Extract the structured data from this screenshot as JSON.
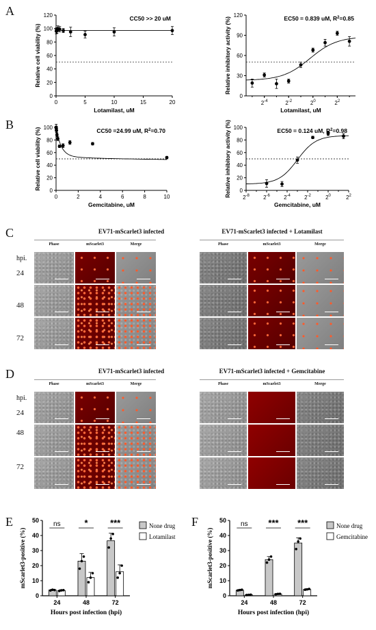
{
  "panels": {
    "A": "A",
    "B": "B",
    "C": "C",
    "D": "D",
    "E": "E",
    "F": "F"
  },
  "chart_data": [
    {
      "id": "A-left",
      "type": "scatter",
      "annotation": "CC50 >> 20 uM",
      "xlabel": "Lotamilast, uM",
      "ylabel": "Relative cell viability (%)",
      "xlim": [
        0,
        20
      ],
      "ylim": [
        0,
        120
      ],
      "xticks": [
        "0",
        "5",
        "10",
        "15",
        "20"
      ],
      "yticks": [
        "0",
        "20",
        "40",
        "60",
        "80",
        "100",
        "120"
      ],
      "reference_line": 50,
      "x": [
        0.04,
        0.08,
        0.16,
        0.31,
        0.63,
        1.25,
        2.5,
        5,
        10,
        20
      ],
      "y": [
        96,
        98,
        97,
        100,
        99,
        97,
        95,
        91,
        95,
        97
      ],
      "err": [
        4,
        3,
        4,
        4,
        4,
        3,
        7,
        5,
        6,
        6
      ]
    },
    {
      "id": "A-right",
      "type": "scatter",
      "annotation": "EC50 = 0.839 uM, R",
      "annotation_sup": "2",
      "annotation_tail": "=0.85",
      "xlabel": "Lotamilast, uM",
      "ylabel": "Relative inhibitory activity (%)",
      "xscale": "log2",
      "xlim_log2": [
        -5.5,
        3.5
      ],
      "ylim": [
        0,
        120
      ],
      "xticks": [
        {
          "base": "2",
          "exp": "-4"
        },
        {
          "base": "2",
          "exp": "-2"
        },
        {
          "base": "2",
          "exp": "0"
        },
        {
          "base": "2",
          "exp": "2"
        }
      ],
      "xtick_exps": [
        -4,
        -2,
        0,
        2
      ],
      "yticks": [
        "0",
        "30",
        "60",
        "90",
        "120"
      ],
      "reference_line": 50,
      "x_log2": [
        -5,
        -4,
        -3,
        -2,
        -1,
        0,
        1,
        2,
        3
      ],
      "y": [
        19,
        31,
        18,
        22,
        46,
        68,
        79,
        93,
        81
      ],
      "err": [
        6,
        3,
        7,
        3,
        4,
        3,
        5,
        3,
        7
      ]
    },
    {
      "id": "B-left",
      "type": "scatter",
      "annotation": "CC50 =24.99 uM, R",
      "annotation_sup": "2",
      "annotation_tail": "=0.70",
      "xlabel": "Gemcitabine, uM",
      "ylabel": "Relative cell viability (%)",
      "xlim": [
        0,
        10
      ],
      "ylim": [
        0,
        100
      ],
      "xticks": [
        "0",
        "2",
        "4",
        "6",
        "8",
        "10"
      ],
      "yticks": [
        "0",
        "20",
        "40",
        "60",
        "80",
        "100"
      ],
      "reference_line": 50,
      "x": [
        0.01,
        0.02,
        0.04,
        0.08,
        0.16,
        0.31,
        0.63,
        1.25,
        3.3,
        10
      ],
      "y": [
        100,
        98,
        95,
        88,
        82,
        70,
        71,
        76,
        74,
        52
      ],
      "err": [
        5,
        4,
        3,
        3,
        3,
        2,
        3,
        3,
        2,
        2
      ]
    },
    {
      "id": "B-right",
      "type": "scatter",
      "annotation": "EC50 = 0.124 uM, R",
      "annotation_sup": "2",
      "annotation_tail": "=0.98",
      "xlabel": "Gemcitabine, uM",
      "ylabel": "Relative inhibitory activity (%)",
      "xscale": "log2",
      "xlim_log2": [
        -8,
        2
      ],
      "ylim": [
        0,
        100
      ],
      "xticks": [
        {
          "base": "2",
          "exp": "-8"
        },
        {
          "base": "2",
          "exp": "-6"
        },
        {
          "base": "2",
          "exp": "-4"
        },
        {
          "base": "2",
          "exp": "-2"
        },
        {
          "base": "2",
          "exp": "0"
        },
        {
          "base": "2",
          "exp": "2"
        }
      ],
      "xtick_exps": [
        -8,
        -6,
        -4,
        -2,
        0,
        2
      ],
      "yticks": [
        "0",
        "20",
        "40",
        "60",
        "80",
        "100"
      ],
      "reference_line": 50,
      "x_log2": [
        -6,
        -4.5,
        -3,
        -1.5,
        0,
        1.5
      ],
      "y": [
        11,
        10,
        48,
        84,
        90,
        86
      ],
      "err": [
        6,
        4,
        5,
        2,
        3,
        4
      ]
    },
    {
      "id": "E",
      "type": "bar",
      "xlabel": "Hours post infection (hpi)",
      "ylabel": "mScarlet3-positive (%)",
      "categories": [
        "24",
        "48",
        "72"
      ],
      "ylim": [
        0,
        50
      ],
      "yticks": [
        "0",
        "10",
        "20",
        "30",
        "40",
        "50"
      ],
      "significance": [
        "ns",
        "*",
        "***"
      ],
      "series": [
        {
          "name": "None drug",
          "color": "#c8c8c8",
          "values": [
            3.8,
            23,
            36.5
          ],
          "err": [
            0.5,
            5,
            5
          ],
          "points": [
            [
              3.5,
              4,
              3.8
            ],
            [
              18,
              23,
              26
            ],
            [
              32,
              38,
              41
            ]
          ]
        },
        {
          "name": "Lotamilast",
          "color": "#ffffff",
          "values": [
            3.5,
            12,
            16
          ],
          "err": [
            0.5,
            3.5,
            4.5
          ],
          "points": [
            [
              3.2,
              3.6,
              3.7
            ],
            [
              9,
              12,
              15
            ],
            [
              12,
              15,
              20
            ]
          ]
        }
      ]
    },
    {
      "id": "F",
      "type": "bar",
      "xlabel": "Hours post infection (hpi)",
      "ylabel": "mScarlet3-positive (%)",
      "categories": [
        "24",
        "48",
        "72"
      ],
      "ylim": [
        0,
        50
      ],
      "yticks": [
        "0",
        "10",
        "20",
        "30",
        "40",
        "50"
      ],
      "significance": [
        "ns",
        "***",
        "***"
      ],
      "series": [
        {
          "name": "None drug",
          "color": "#c8c8c8",
          "values": [
            3.7,
            24,
            35
          ],
          "err": [
            0.5,
            2,
            3.5
          ],
          "points": [
            [
              3.5,
              3.8,
              4
            ],
            [
              22,
              24,
              26
            ],
            [
              31,
              36,
              38
            ]
          ]
        },
        {
          "name": "Gemcitabine",
          "color": "#ffffff",
          "values": [
            0.6,
            1.2,
            4.2
          ],
          "err": [
            0.2,
            0.3,
            0.5
          ],
          "points": [
            [
              0.5,
              0.6,
              0.7
            ],
            [
              1,
              1.2,
              1.3
            ],
            [
              4,
              4.2,
              4.5
            ]
          ]
        }
      ]
    }
  ],
  "imaging": {
    "C": {
      "left_title": "EV71-mScarlet3 infected",
      "right_title": "EV71-mScarlet3 infected  +  Lotamilast",
      "columns": [
        "Phase",
        "mScarlet3",
        "Merge"
      ],
      "hpi_label": "hpi.",
      "rows": [
        "24",
        "48",
        "72"
      ]
    },
    "D": {
      "left_title": "EV71-mScarlet3 infected",
      "right_title": "EV71-mScarlet3 infected  +  Gemcitabine",
      "columns": [
        "Phase",
        "mScarlet3",
        "Merge"
      ],
      "hpi_label": "hpi.",
      "rows": [
        "24",
        "48",
        "72"
      ]
    }
  }
}
